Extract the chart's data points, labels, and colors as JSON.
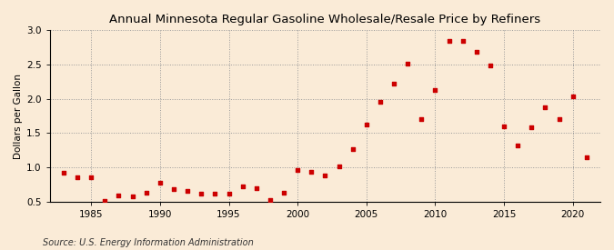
{
  "title": "Annual Minnesota Regular Gasoline Wholesale/Resale Price by Refiners",
  "ylabel": "Dollars per Gallon",
  "source": "Source: U.S. Energy Information Administration",
  "background_color": "#faebd7",
  "marker_color": "#cc0000",
  "years": [
    1983,
    1984,
    1985,
    1986,
    1987,
    1988,
    1989,
    1990,
    1991,
    1992,
    1993,
    1994,
    1995,
    1996,
    1997,
    1998,
    1999,
    2000,
    2001,
    2002,
    2003,
    2004,
    2005,
    2006,
    2007,
    2008,
    2009,
    2010,
    2011,
    2012,
    2013,
    2014,
    2015,
    2016,
    2017,
    2018,
    2019,
    2020,
    2021
  ],
  "values": [
    0.92,
    0.86,
    0.86,
    0.51,
    0.59,
    0.57,
    0.63,
    0.77,
    0.68,
    0.65,
    0.62,
    0.61,
    0.61,
    0.72,
    0.7,
    0.52,
    0.63,
    0.96,
    0.93,
    0.88,
    1.01,
    1.27,
    1.62,
    1.95,
    2.22,
    2.52,
    1.71,
    2.13,
    2.85,
    2.84,
    2.68,
    2.49,
    1.6,
    1.32,
    1.58,
    1.87,
    1.7,
    2.03,
    1.15
  ],
  "xlim": [
    1982,
    2022
  ],
  "ylim": [
    0.5,
    3.0
  ],
  "yticks": [
    0.5,
    1.0,
    1.5,
    2.0,
    2.5,
    3.0
  ],
  "xticks": [
    1985,
    1990,
    1995,
    2000,
    2005,
    2010,
    2015,
    2020
  ],
  "title_fontsize": 9.5,
  "label_fontsize": 7.5,
  "tick_fontsize": 7.5,
  "source_fontsize": 7
}
